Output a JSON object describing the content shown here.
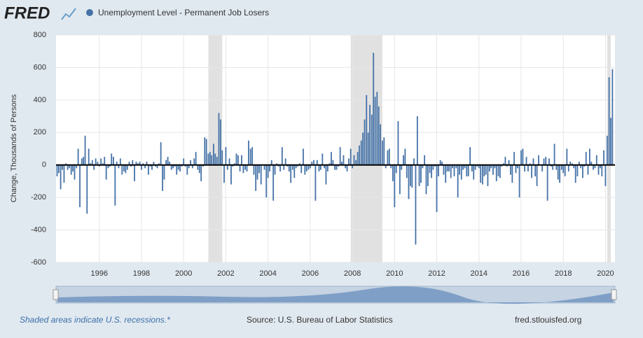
{
  "logo": "FRED",
  "footer": {
    "note": "Shaded areas indicate U.S. recessions.*",
    "source": "Source: U.S. Bureau of Labor Statistics",
    "site": "fred.stlouisfed.org"
  },
  "chart_data": {
    "type": "bar",
    "ylabel": "Change, Thousands of Persons",
    "series": [
      {
        "name": "Unemployment Level - Permanent Job Losers",
        "color": "#4572a7",
        "values": [
          -70,
          -50,
          -150,
          -30,
          -110,
          10,
          -30,
          -20,
          -60,
          -40,
          -90,
          -20,
          100,
          -260,
          40,
          50,
          180,
          -300,
          100,
          10,
          30,
          -30,
          40,
          20,
          -10,
          40,
          10,
          50,
          -90,
          -20,
          -10,
          70,
          50,
          -250,
          20,
          -20,
          40,
          -60,
          -40,
          -50,
          -30,
          20,
          -10,
          30,
          -100,
          20,
          10,
          20,
          -30,
          10,
          -20,
          20,
          -60,
          -10,
          -30,
          20,
          -10,
          -20,
          10,
          140,
          -160,
          -90,
          30,
          50,
          20,
          -30,
          -20,
          -10,
          -60,
          -30,
          -40,
          -10,
          40,
          -10,
          -60,
          -20,
          30,
          -20,
          40,
          80,
          -30,
          -50,
          -100,
          -10,
          170,
          160,
          70,
          80,
          60,
          130,
          70,
          50,
          320,
          280,
          90,
          -110,
          110,
          -30,
          40,
          -120,
          -10,
          10,
          70,
          60,
          -40,
          60,
          -50,
          -30,
          -40,
          150,
          100,
          110,
          -60,
          -160,
          -90,
          -50,
          -120,
          0,
          -30,
          -200,
          -80,
          -40,
          30,
          -220,
          -60,
          10,
          -10,
          -40,
          110,
          -30,
          40,
          -10,
          -40,
          -110,
          -30,
          -80,
          -20,
          -10,
          10,
          -50,
          100,
          -60,
          -40,
          -30,
          -20,
          20,
          30,
          -220,
          30,
          -40,
          -30,
          70,
          -20,
          -120,
          -40,
          10,
          80,
          30,
          -30,
          -30,
          -10,
          110,
          20,
          60,
          -20,
          -40,
          40,
          100,
          -20,
          60,
          30,
          80,
          120,
          150,
          200,
          280,
          430,
          200,
          370,
          310,
          690,
          420,
          450,
          360,
          250,
          150,
          170,
          -20,
          90,
          100,
          -20,
          -100,
          -260,
          -50,
          270,
          -180,
          -30,
          60,
          100,
          -80,
          -210,
          -130,
          -140,
          40,
          -490,
          300,
          -130,
          -110,
          -20,
          60,
          -180,
          -130,
          -50,
          -80,
          -30,
          -10,
          -290,
          -70,
          30,
          20,
          -60,
          -110,
          -40,
          -40,
          -80,
          -20,
          -70,
          -20,
          -200,
          -60,
          -90,
          -30,
          -20,
          -70,
          -70,
          110,
          -40,
          -90,
          -30,
          -10,
          -20,
          -110,
          -120,
          -70,
          -60,
          -130,
          -40,
          -20,
          -60,
          -20,
          -100,
          -70,
          -80,
          -10,
          10,
          50,
          -10,
          30,
          -60,
          -110,
          80,
          -50,
          -20,
          -200,
          90,
          100,
          -40,
          50,
          -40,
          10,
          -80,
          40,
          -70,
          -130,
          60,
          0,
          -40,
          40,
          50,
          -220,
          40,
          -10,
          -30,
          130,
          -30,
          -90,
          -110,
          -30,
          -50,
          -70,
          100,
          -40,
          20,
          10,
          -20,
          -110,
          -70,
          20,
          -20,
          -80,
          -10,
          80,
          -60,
          100,
          20,
          -30,
          -20,
          60,
          -60,
          -20,
          -70,
          90,
          -130,
          180,
          540,
          290,
          590
        ]
      }
    ],
    "x": [
      1994,
      1994.08,
      1994.17,
      1994.25,
      1994.33,
      1994.42,
      1994.5,
      1994.58,
      1994.67,
      1994.75,
      1994.83,
      1994.92,
      1995,
      1995.08,
      1995.17,
      1995.25,
      1995.33,
      1995.42,
      1995.5,
      1995.58,
      1995.67,
      1995.75,
      1995.83,
      1995.92,
      1996,
      1996.08,
      1996.17,
      1996.25,
      1996.33,
      1996.42,
      1996.5,
      1996.58,
      1996.67,
      1996.75,
      1996.83,
      1996.92,
      1997,
      1997.08,
      1997.17,
      1997.25,
      1997.33,
      1997.42,
      1997.5,
      1997.58,
      1997.67,
      1997.75,
      1997.83,
      1997.92,
      1998,
      1998.08,
      1998.17,
      1998.25,
      1998.33,
      1998.42,
      1998.5,
      1998.58,
      1998.67,
      1998.75,
      1998.83,
      1998.92,
      1999,
      1999.08,
      1999.17,
      1999.25,
      1999.33,
      1999.42,
      1999.5,
      1999.58,
      1999.67,
      1999.75,
      1999.83,
      1999.92,
      2000,
      2000.08,
      2000.17,
      2000.25,
      2000.33,
      2000.42,
      2000.5,
      2000.58,
      2000.67,
      2000.75,
      2000.83,
      2000.92,
      2001,
      2001.08,
      2001.17,
      2001.25,
      2001.33,
      2001.42,
      2001.5,
      2001.58,
      2001.67,
      2001.75,
      2001.83,
      2001.92,
      2002,
      2002.08,
      2002.17,
      2002.25,
      2002.33,
      2002.42,
      2002.5,
      2002.58,
      2002.67,
      2002.75,
      2002.83,
      2002.92,
      2003,
      2003.08,
      2003.17,
      2003.25,
      2003.33,
      2003.42,
      2003.5,
      2003.58,
      2003.67,
      2003.75,
      2003.83,
      2003.92,
      2004,
      2004.08,
      2004.17,
      2004.25,
      2004.33,
      2004.42,
      2004.5,
      2004.58,
      2004.67,
      2004.75,
      2004.83,
      2004.92,
      2005,
      2005.08,
      2005.17,
      2005.25,
      2005.33,
      2005.42,
      2005.5,
      2005.58,
      2005.67,
      2005.75,
      2005.83,
      2005.92,
      2006,
      2006.08,
      2006.17,
      2006.25,
      2006.33,
      2006.42,
      2006.5,
      2006.58,
      2006.67,
      2006.75,
      2006.83,
      2006.92,
      2007,
      2007.08,
      2007.17,
      2007.25,
      2007.33,
      2007.42,
      2007.5,
      2007.58,
      2007.67,
      2007.75,
      2007.83,
      2007.92,
      2008,
      2008.08,
      2008.17,
      2008.25,
      2008.33,
      2008.42,
      2008.5,
      2008.58,
      2008.67,
      2008.75,
      2008.83,
      2008.92,
      2009,
      2009.08,
      2009.17,
      2009.25,
      2009.33,
      2009.42,
      2009.5,
      2009.58,
      2009.67,
      2009.75,
      2009.83,
      2009.92,
      2010,
      2010.08,
      2010.17,
      2010.25,
      2010.33,
      2010.42,
      2010.5,
      2010.58,
      2010.67,
      2010.75,
      2010.83,
      2010.92,
      2011,
      2011.08,
      2011.17,
      2011.25,
      2011.33,
      2011.42,
      2011.5,
      2011.58,
      2011.67,
      2011.75,
      2011.83,
      2011.92,
      2012,
      2012.08,
      2012.17,
      2012.25,
      2012.33,
      2012.42,
      2012.5,
      2012.58,
      2012.67,
      2012.75,
      2012.83,
      2012.92,
      2013,
      2013.08,
      2013.17,
      2013.25,
      2013.33,
      2013.42,
      2013.5,
      2013.58,
      2013.67,
      2013.75,
      2013.83,
      2013.92,
      2014,
      2014.08,
      2014.17,
      2014.25,
      2014.33,
      2014.42,
      2014.5,
      2014.58,
      2014.67,
      2014.75,
      2014.83,
      2014.92,
      2015,
      2015.08,
      2015.17,
      2015.25,
      2015.33,
      2015.42,
      2015.5,
      2015.58,
      2015.67,
      2015.75,
      2015.83,
      2015.92,
      2016,
      2016.08,
      2016.17,
      2016.25,
      2016.33,
      2016.42,
      2016.5,
      2016.58,
      2016.67,
      2016.75,
      2016.83,
      2016.92,
      2017,
      2017.08,
      2017.17,
      2017.25,
      2017.33,
      2017.42,
      2017.5,
      2017.58,
      2017.67,
      2017.75,
      2017.83,
      2017.92,
      2018,
      2018.08,
      2018.17,
      2018.25,
      2018.33,
      2018.42,
      2018.5,
      2018.58,
      2018.67,
      2018.75,
      2018.83,
      2018.92,
      2019,
      2019.08,
      2019.17,
      2019.25,
      2019.33,
      2019.42,
      2019.5,
      2019.58,
      2019.67,
      2019.75,
      2019.83,
      2019.92,
      2020,
      2020.08,
      2020.17,
      2020.25,
      2020.33
    ],
    "xlim": [
      1993.95,
      2020.45
    ],
    "xticks": [
      1996,
      1998,
      2000,
      2002,
      2004,
      2006,
      2008,
      2010,
      2012,
      2014,
      2016,
      2018,
      2020
    ],
    "ylim": [
      -600,
      800
    ],
    "yticks": [
      -600,
      -400,
      -200,
      0,
      200,
      400,
      600,
      800
    ],
    "grid": true,
    "recessions": [
      [
        2001.17,
        2001.83
      ],
      [
        2007.92,
        2009.42
      ],
      [
        2020.08,
        2020.25
      ]
    ],
    "recession_color": "#e1e1e1"
  }
}
